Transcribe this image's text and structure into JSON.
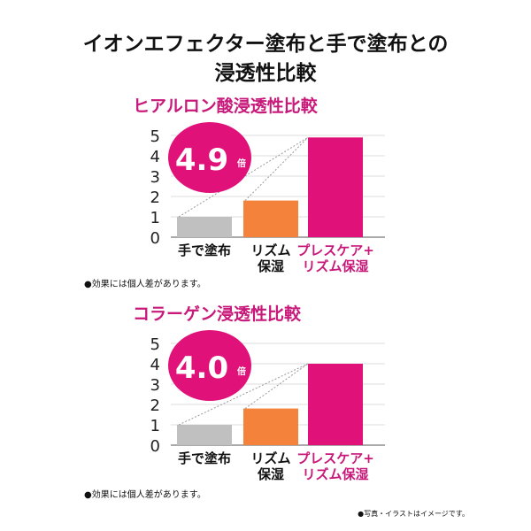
{
  "title_line1": "イオンエフェクター塗布と手で塗布との",
  "title_line2": "浸透性比較",
  "footnote": "●写真・イラストはイメージです。",
  "colors": {
    "gray": "#c0c0c0",
    "orange": "#f5823a",
    "pink": "#e0127a",
    "title_pink": "#c8197a"
  },
  "chart_data": [
    {
      "type": "bar",
      "title": "ヒアルロン酸浸透性比較",
      "categories": [
        [
          "手で塗布"
        ],
        [
          "リズム",
          "保湿"
        ],
        [
          "プレスケア+",
          "リズム保湿"
        ]
      ],
      "values": [
        1.0,
        1.8,
        4.9
      ],
      "yticks": [
        "0",
        "1",
        "2",
        "3",
        "4",
        "5"
      ],
      "ylim": [
        0,
        5
      ],
      "grid": true,
      "badge_value": "4.9",
      "badge_unit": "倍",
      "note": "●効果には個人差があります。"
    },
    {
      "type": "bar",
      "title": "コラーゲン浸透性比較",
      "categories": [
        [
          "手で塗布"
        ],
        [
          "リズム",
          "保湿"
        ],
        [
          "プレスケア+",
          "リズム保湿"
        ]
      ],
      "values": [
        1.0,
        1.8,
        4.0
      ],
      "yticks": [
        "0",
        "1",
        "2",
        "3",
        "4",
        "5"
      ],
      "ylim": [
        0,
        5
      ],
      "grid": true,
      "badge_value": "4.0",
      "badge_unit": "倍",
      "note": "●効果には個人差があります。"
    }
  ]
}
